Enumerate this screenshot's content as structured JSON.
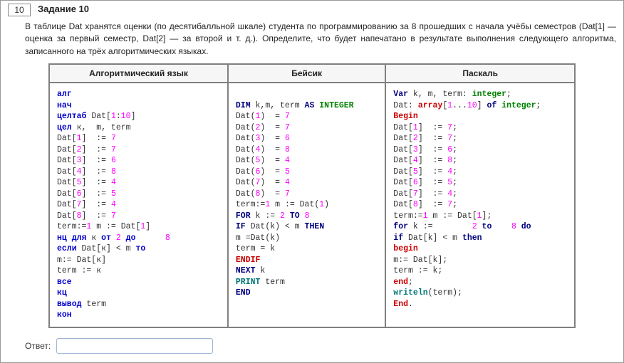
{
  "task": {
    "number": "10",
    "title": "Задание 10",
    "description": "В таблице Dat хранятся оценки (по десятибалльной шкале) студента по программированию за 8 прошедших с начала учёбы семестров (Dat[1] — оценка за первый семестр, Dat[2] — за второй и т. д.). Определите, что будет напечатано в результате выполнения следующего алгоритма, записанного на трёх алгоритмических языках."
  },
  "table": {
    "headers": [
      "Алгоритмический язык",
      "Бейсик",
      "Паскаль"
    ],
    "col_widths": [
      "34%",
      "30%",
      "36%"
    ],
    "colors": {
      "border": "#808080",
      "header_bg": "#f6f6f6",
      "keyword_blue": "#0000cc",
      "keyword_navy": "#000080",
      "keyword_red": "#cc0000",
      "keyword_green": "#008000",
      "keyword_teal": "#007777",
      "number": "#ff00ff",
      "index": "#888888",
      "text": "#333333"
    }
  },
  "code": {
    "alg": {
      "lines": [
        {
          "t": "алг",
          "cls": "k-blue"
        },
        {
          "t": "нач",
          "cls": "k-blue"
        },
        {
          "raw": "<span class='k-blue'>целтаб</span> Dat[<span class='num-c'>1</span>:<span class='num-c'>10</span>]"
        },
        {
          "raw": "<span class='k-blue'>цел</span> к,  m, term"
        },
        {
          "raw": "Dat[<span class='num-c'>1</span>]  := <span class='num-c'>7</span>"
        },
        {
          "raw": "Dat[<span class='num-c'>2</span>]  := <span class='num-c'>7</span>"
        },
        {
          "raw": "Dat[<span class='num-c'>3</span>]  := <span class='num-c'>6</span>"
        },
        {
          "raw": "Dat[<span class='num-c'>4</span>]  := <span class='num-c'>8</span>"
        },
        {
          "raw": "Dat[<span class='num-c'>5</span>]  := <span class='num-c'>4</span>"
        },
        {
          "raw": "Dat[<span class='num-c'>6</span>]  := <span class='num-c'>5</span>"
        },
        {
          "raw": "Dat[<span class='num-c'>7</span>]  := <span class='num-c'>4</span>"
        },
        {
          "raw": "Dat[<span class='num-c'>8</span>]  := <span class='num-c'>7</span>"
        },
        {
          "raw": "term:=<span class='num-c'>1</span> m := Dat[<span class='num-c'>1</span>]"
        },
        {
          "raw": "<span class='k-blue'>нц для</span> к <span class='k-blue'>от</span> <span class='num-c'>2</span> <span class='k-blue'>до</span>      <span class='num-c'>8</span>"
        },
        {
          "raw": "<span class='k-blue'>если</span> Dat[к] &lt; m <span class='k-blue'>то</span>"
        },
        {
          "raw": "m:= Dat[к]"
        },
        {
          "raw": "term := к"
        },
        {
          "t": "все",
          "cls": "k-blue"
        },
        {
          "t": "кц",
          "cls": "k-blue"
        },
        {
          "raw": "<span class='k-blue'>вывод</span> term"
        },
        {
          "t": "кон",
          "cls": "k-blue"
        }
      ]
    },
    "basic": {
      "lines": [
        {
          "t": " ",
          "cls": ""
        },
        {
          "raw": "<span class='k-navy'>DIM</span> k,m, term <span class='k-navy'>AS</span> <span class='k-green'>INTEGER</span>"
        },
        {
          "raw": "Dat(<span class='num-c'>1</span>)  = <span class='num-c'>7</span>"
        },
        {
          "raw": "Dat(<span class='num-c'>2</span>)  = <span class='num-c'>7</span>"
        },
        {
          "raw": "Dat(<span class='num-c'>3</span>)  = <span class='num-c'>6</span>"
        },
        {
          "raw": "Dat(<span class='num-c'>4</span>)  = <span class='num-c'>8</span>"
        },
        {
          "raw": "Dat(<span class='num-c'>5</span>)  = <span class='num-c'>4</span>"
        },
        {
          "raw": "Dat(<span class='num-c'>6</span>)  = <span class='num-c'>5</span>"
        },
        {
          "raw": "Dat(<span class='num-c'>7</span>)  = <span class='num-c'>4</span>"
        },
        {
          "raw": "Dat(<span class='num-c'>8</span>)  = <span class='num-c'>7</span>"
        },
        {
          "raw": "term:=<span class='num-c'>1</span> m := Dat(<span class='num-c'>1</span>)"
        },
        {
          "raw": "<span class='k-navy'>FOR</span> k := <span class='num-c'>2</span> <span class='k-navy'>TO</span> <span class='num-c'>8</span>"
        },
        {
          "raw": "<span class='k-navy'>IF</span> Dat(k) &lt; m <span class='k-navy'>THEN</span>"
        },
        {
          "raw": "m =Dat(k)"
        },
        {
          "raw": "term = k"
        },
        {
          "t": "ENDIF",
          "cls": "k-red"
        },
        {
          "raw": "<span class='k-navy'>NEXT</span> k"
        },
        {
          "raw": "<span class='k-teal'>PRINT</span> term"
        },
        {
          "t": "END",
          "cls": "k-navy"
        }
      ]
    },
    "pascal": {
      "lines": [
        {
          "raw": "<span class='k-navy'>Var</span> k, m, term: <span class='k-green'>integer</span>;"
        },
        {
          "raw": "Dat: <span class='k-red'>array</span>[<span class='num-c'>1</span>...<span class='num-c'>10</span>] <span class='k-navy'>of</span> <span class='k-green'>integer</span>;"
        },
        {
          "t": "Begin",
          "cls": "k-red"
        },
        {
          "raw": "Dat[<span class='num-c'>1</span>]  := <span class='num-c'>7</span>;"
        },
        {
          "raw": "Dat[<span class='num-c'>2</span>]  := <span class='num-c'>7</span>;"
        },
        {
          "raw": "Dat[<span class='num-c'>3</span>]  := <span class='num-c'>6</span>;"
        },
        {
          "raw": "Dat[<span class='num-c'>4</span>]  := <span class='num-c'>8</span>;"
        },
        {
          "raw": "Dat[<span class='num-c'>5</span>]  := <span class='num-c'>4</span>;"
        },
        {
          "raw": "Dat[<span class='num-c'>6</span>]  := <span class='num-c'>5</span>;"
        },
        {
          "raw": "Dat[<span class='num-c'>7</span>]  := <span class='num-c'>4</span>;"
        },
        {
          "raw": "Dat[<span class='num-c'>8</span>]  := <span class='num-c'>7</span>;"
        },
        {
          "raw": "term:=<span class='num-c'>1</span> m := Dat[<span class='num-c'>1</span>];"
        },
        {
          "raw": "<span class='k-navy'>for</span> k :=        <span class='num-c'>2</span> <span class='k-navy'>to</span>    <span class='num-c'>8</span> <span class='k-navy'>do</span>"
        },
        {
          "raw": "<span class='k-navy'>if</span> Dat[k] &lt; m <span class='k-navy'>then</span>"
        },
        {
          "t": "begin",
          "cls": "k-red"
        },
        {
          "raw": "m:= Dat[k];"
        },
        {
          "raw": "term := k;"
        },
        {
          "raw": "<span class='k-red'>end</span>;"
        },
        {
          "raw": "<span class='k-teal'>writeln</span>(term);"
        },
        {
          "raw": "<span class='k-red'>End</span>."
        }
      ]
    }
  },
  "answer": {
    "label": "Ответ:",
    "value": ""
  }
}
